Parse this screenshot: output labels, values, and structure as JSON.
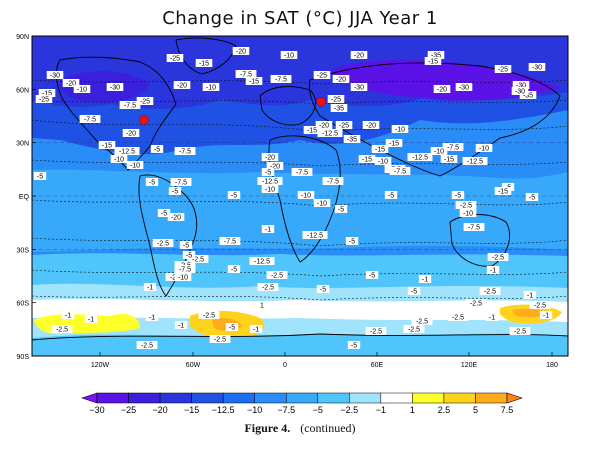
{
  "title": "Change in SAT (°C) JJA Year 1",
  "caption": {
    "figure": "Figure 4.",
    "note": "(continued)"
  },
  "axes": {
    "lat_ticks": [
      "90N",
      "60N",
      "30N",
      "EQ",
      "30S",
      "60S",
      "90S"
    ],
    "lon_ticks": [
      "120W",
      "60W",
      "0",
      "60E",
      "120E",
      "180"
    ]
  },
  "colorbar": {
    "labels": [
      "−30",
      "−25",
      "−20",
      "−15",
      "−12.5",
      "−10",
      "−7.5",
      "−5",
      "−2.5",
      "−1",
      "1",
      "2.5",
      "5",
      "7.5"
    ],
    "colors": [
      "#7b16f0",
      "#5a12e6",
      "#3a1fdc",
      "#2a35dc",
      "#1f52e4",
      "#1d6df0",
      "#2a8cf7",
      "#37a8fa",
      "#4fc5fb",
      "#9fe4fc",
      "#ffffff",
      "#ffff2a",
      "#ffd21c",
      "#ffac1c",
      "#ff8414"
    ]
  },
  "contour_labels": [
    {
      "text": "-20"
    },
    {
      "text": "-25"
    },
    {
      "text": "-15"
    },
    {
      "text": "-10"
    },
    {
      "text": "-20"
    },
    {
      "text": "-30"
    },
    {
      "text": "-20"
    },
    {
      "text": "-10"
    },
    {
      "text": "-15"
    },
    {
      "text": "-25"
    },
    {
      "text": "-30"
    },
    {
      "text": "-7.5"
    },
    {
      "text": "-25"
    },
    {
      "text": "-20"
    },
    {
      "text": "-10"
    },
    {
      "text": "-7.5"
    },
    {
      "text": "-15"
    },
    {
      "text": "-7.5"
    },
    {
      "text": "-25"
    },
    {
      "text": "-20"
    },
    {
      "text": "-30"
    },
    {
      "text": "-35"
    },
    {
      "text": "-15"
    },
    {
      "text": "-20"
    },
    {
      "text": "-30"
    },
    {
      "text": "-25"
    },
    {
      "text": "-30"
    },
    {
      "text": "-30"
    },
    {
      "text": "-35"
    },
    {
      "text": "-30"
    },
    {
      "text": "-20"
    },
    {
      "text": "-15"
    },
    {
      "text": "-7.5"
    },
    {
      "text": "-20"
    },
    {
      "text": "-25"
    },
    {
      "text": "-35"
    },
    {
      "text": "-20"
    },
    {
      "text": "-25"
    },
    {
      "text": "-12.5"
    },
    {
      "text": "-10"
    },
    {
      "text": "-7.5"
    },
    {
      "text": "-15"
    },
    {
      "text": "-12.5"
    },
    {
      "text": "-10"
    },
    {
      "text": "-7.5"
    },
    {
      "text": "-15"
    },
    {
      "text": "-10"
    },
    {
      "text": "-12.5"
    },
    {
      "text": "-5"
    },
    {
      "text": "-10"
    },
    {
      "text": "-7.5"
    },
    {
      "text": "-5"
    },
    {
      "text": "-12.5"
    },
    {
      "text": "-15"
    },
    {
      "text": "-10"
    },
    {
      "text": "-20"
    },
    {
      "text": "-20"
    },
    {
      "text": "-15"
    },
    {
      "text": "-35"
    },
    {
      "text": "-15"
    },
    {
      "text": "-10"
    },
    {
      "text": "-12.5"
    },
    {
      "text": "-10"
    },
    {
      "text": "-7.5"
    },
    {
      "text": "-5"
    },
    {
      "text": "-5"
    },
    {
      "text": "-7.5"
    },
    {
      "text": "-5"
    },
    {
      "text": "-5"
    },
    {
      "text": "-10"
    },
    {
      "text": "-7.5"
    },
    {
      "text": "-5"
    },
    {
      "text": "-5"
    },
    {
      "text": "-7.5"
    },
    {
      "text": "-5"
    },
    {
      "text": "-10"
    },
    {
      "text": "-5"
    },
    {
      "text": "-2.5"
    },
    {
      "text": "-20"
    },
    {
      "text": "-5"
    },
    {
      "text": "-15"
    },
    {
      "text": "-12.5"
    },
    {
      "text": "-5"
    },
    {
      "text": "-10"
    },
    {
      "text": "-7.5"
    },
    {
      "text": "-5"
    },
    {
      "text": "-2.5"
    },
    {
      "text": "-1"
    },
    {
      "text": "-2.5"
    },
    {
      "text": "-7.5"
    },
    {
      "text": "-12.5"
    },
    {
      "text": "-5"
    },
    {
      "text": "-5"
    },
    {
      "text": "-2.5"
    },
    {
      "text": "-2.5"
    },
    {
      "text": "-1"
    },
    {
      "text": "-10"
    },
    {
      "text": "-7.5"
    },
    {
      "text": "-5"
    },
    {
      "text": "-2.5"
    },
    {
      "text": "-1"
    },
    {
      "text": "-5"
    },
    {
      "text": "-2.5"
    },
    {
      "text": "-2.5"
    },
    {
      "text": "-5"
    },
    {
      "text": "-1"
    },
    {
      "text": "-5"
    },
    {
      "text": "-2.5"
    },
    {
      "text": "-1"
    },
    {
      "text": "-2.5"
    },
    {
      "text": "1"
    },
    {
      "text": "-2.5"
    },
    {
      "text": "-1"
    },
    {
      "text": "-2.5"
    },
    {
      "text": "-1"
    },
    {
      "text": "-2.5"
    },
    {
      "text": "-2.5"
    },
    {
      "text": "-2.5"
    },
    {
      "text": "-2.5"
    },
    {
      "text": "-5"
    },
    {
      "text": "-1"
    },
    {
      "text": "-2.5"
    },
    {
      "text": "-1"
    },
    {
      "text": "-2.5"
    },
    {
      "text": "-5"
    },
    {
      "text": "-1"
    },
    {
      "text": "-1"
    },
    {
      "text": "-2.5"
    },
    {
      "text": "-1"
    },
    {
      "text": "-2.5"
    }
  ],
  "markers": [
    {
      "name": "north-america-red-dot"
    },
    {
      "name": "europe-red-dot"
    }
  ]
}
